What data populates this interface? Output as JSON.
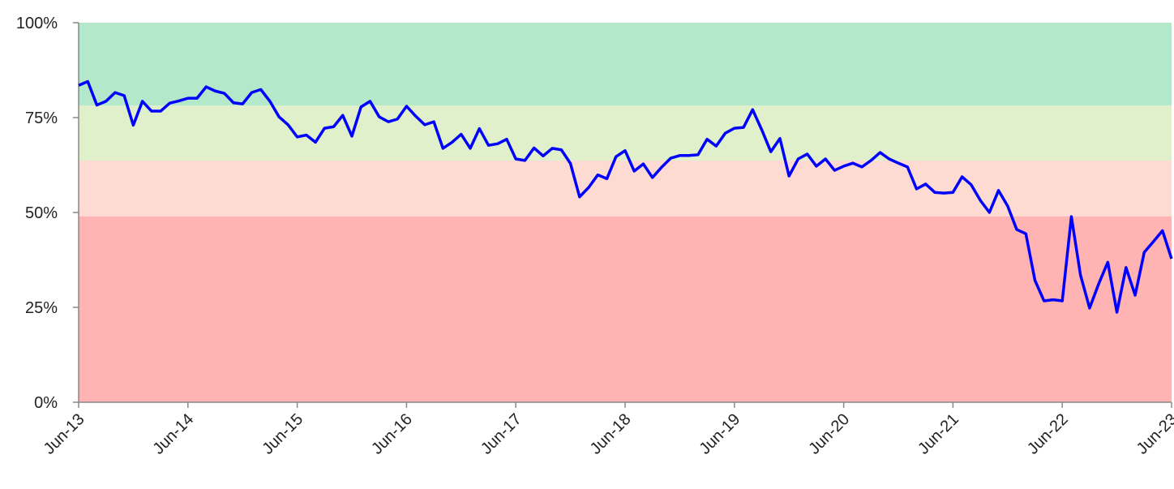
{
  "chart_data": {
    "type": "line",
    "categories": [
      "Jun-13",
      "Jul-13",
      "Aug-13",
      "Sep-13",
      "Oct-13",
      "Nov-13",
      "Dec-13",
      "Jan-14",
      "Feb-14",
      "Mar-14",
      "Apr-14",
      "May-14",
      "Jun-14",
      "Jul-14",
      "Aug-14",
      "Sep-14",
      "Oct-14",
      "Nov-14",
      "Dec-14",
      "Jan-15",
      "Feb-15",
      "Mar-15",
      "Apr-15",
      "May-15",
      "Jun-15",
      "Jul-15",
      "Aug-15",
      "Sep-15",
      "Oct-15",
      "Nov-15",
      "Dec-15",
      "Jan-16",
      "Feb-16",
      "Mar-16",
      "Apr-16",
      "May-16",
      "Jun-16",
      "Jul-16",
      "Aug-16",
      "Sep-16",
      "Oct-16",
      "Nov-16",
      "Dec-16",
      "Jan-17",
      "Feb-17",
      "Mar-17",
      "Apr-17",
      "May-17",
      "Jun-17",
      "Jul-17",
      "Aug-17",
      "Sep-17",
      "Oct-17",
      "Nov-17",
      "Dec-17",
      "Jan-18",
      "Feb-18",
      "Mar-18",
      "Apr-18",
      "May-18",
      "Jun-18",
      "Jul-18",
      "Aug-18",
      "Sep-18",
      "Oct-18",
      "Nov-18",
      "Dec-18",
      "Jan-19",
      "Feb-19",
      "Mar-19",
      "Apr-19",
      "May-19",
      "Jun-19",
      "Jul-19",
      "Aug-19",
      "Sep-19",
      "Oct-19",
      "Nov-19",
      "Dec-19",
      "Jan-20",
      "Feb-20",
      "Mar-20",
      "Apr-20",
      "May-20",
      "Jun-20",
      "Jul-20",
      "Aug-20",
      "Sep-20",
      "Oct-20",
      "Nov-20",
      "Dec-20",
      "Jan-21",
      "Feb-21",
      "Mar-21",
      "Apr-21",
      "May-21",
      "Jun-21",
      "Jul-21",
      "Aug-21",
      "Sep-21",
      "Oct-21",
      "Nov-21",
      "Dec-21",
      "Jan-22",
      "Feb-22",
      "Mar-22",
      "Apr-22",
      "May-22",
      "Jun-22",
      "Jul-22",
      "Aug-22",
      "Sep-22",
      "Oct-22",
      "Nov-22",
      "Dec-22",
      "Jan-23",
      "Feb-23",
      "Mar-23",
      "Apr-23",
      "May-23",
      "Jun-23"
    ],
    "series": [
      {
        "color": "#0000ff",
        "values": [
          83.5,
          84.5,
          78.3,
          79.3,
          81.6,
          80.8,
          73,
          79.3,
          76.7,
          76.7,
          78.8,
          79.4,
          80.1,
          80.1,
          83.1,
          82,
          81.4,
          78.9,
          78.6,
          81.6,
          82.4,
          79.3,
          75.2,
          73.1,
          69.9,
          70.4,
          68.5,
          72.2,
          72.6,
          75.6,
          70.1,
          77.8,
          79.3,
          75.2,
          73.9,
          74.6,
          78,
          75.4,
          73.1,
          73.9,
          66.9,
          68.5,
          70.6,
          66.9,
          72.1,
          67.7,
          68.1,
          69.3,
          64.1,
          63.7,
          67,
          64.9,
          66.9,
          66.5,
          62.9,
          54.1,
          56.6,
          59.9,
          58.9,
          64.7,
          66.3,
          60.9,
          62.8,
          59.2,
          61.9,
          64.3,
          65,
          65,
          65.2,
          69.3,
          67.5,
          70.9,
          72.2,
          72.4,
          77.1,
          71.8,
          66,
          69.5,
          59.6,
          64.1,
          65.4,
          62.2,
          64.1,
          61.1,
          62.2,
          63,
          62,
          63.7,
          65.8,
          64.1,
          63,
          62,
          56.2,
          57.5,
          55.3,
          55.1,
          55.3,
          59.4,
          57.3,
          53.2,
          50,
          55.8,
          51.7,
          45.5,
          44.4,
          32.1,
          26.7,
          27,
          26.7,
          48.9,
          33.5,
          24.8,
          31.2,
          36.9,
          23.7,
          35.5,
          28.2,
          39.5,
          42.3,
          45.2,
          37.8
        ]
      }
    ],
    "bands": [
      {
        "from": 0,
        "to": 49,
        "color": "#ffb3b3"
      },
      {
        "from": 49,
        "to": 63.7,
        "color": "#fddbd3"
      },
      {
        "from": 63.7,
        "to": 78.2,
        "color": "#dff0cb"
      },
      {
        "from": 78.2,
        "to": 100,
        "color": "#b3e8cb"
      }
    ],
    "ylim": [
      0,
      100
    ],
    "yticks": [
      {
        "value": 0,
        "label": "0%"
      },
      {
        "value": 25,
        "label": "25%"
      },
      {
        "value": 50,
        "label": "50%"
      },
      {
        "value": 75,
        "label": "75%"
      },
      {
        "value": 100,
        "label": "100%"
      }
    ],
    "xticks": [
      "Jun-13",
      "Jun-14",
      "Jun-15",
      "Jun-16",
      "Jun-17",
      "Jun-18",
      "Jun-19",
      "Jun-20",
      "Jun-21",
      "Jun-22",
      "Jun-23"
    ]
  }
}
